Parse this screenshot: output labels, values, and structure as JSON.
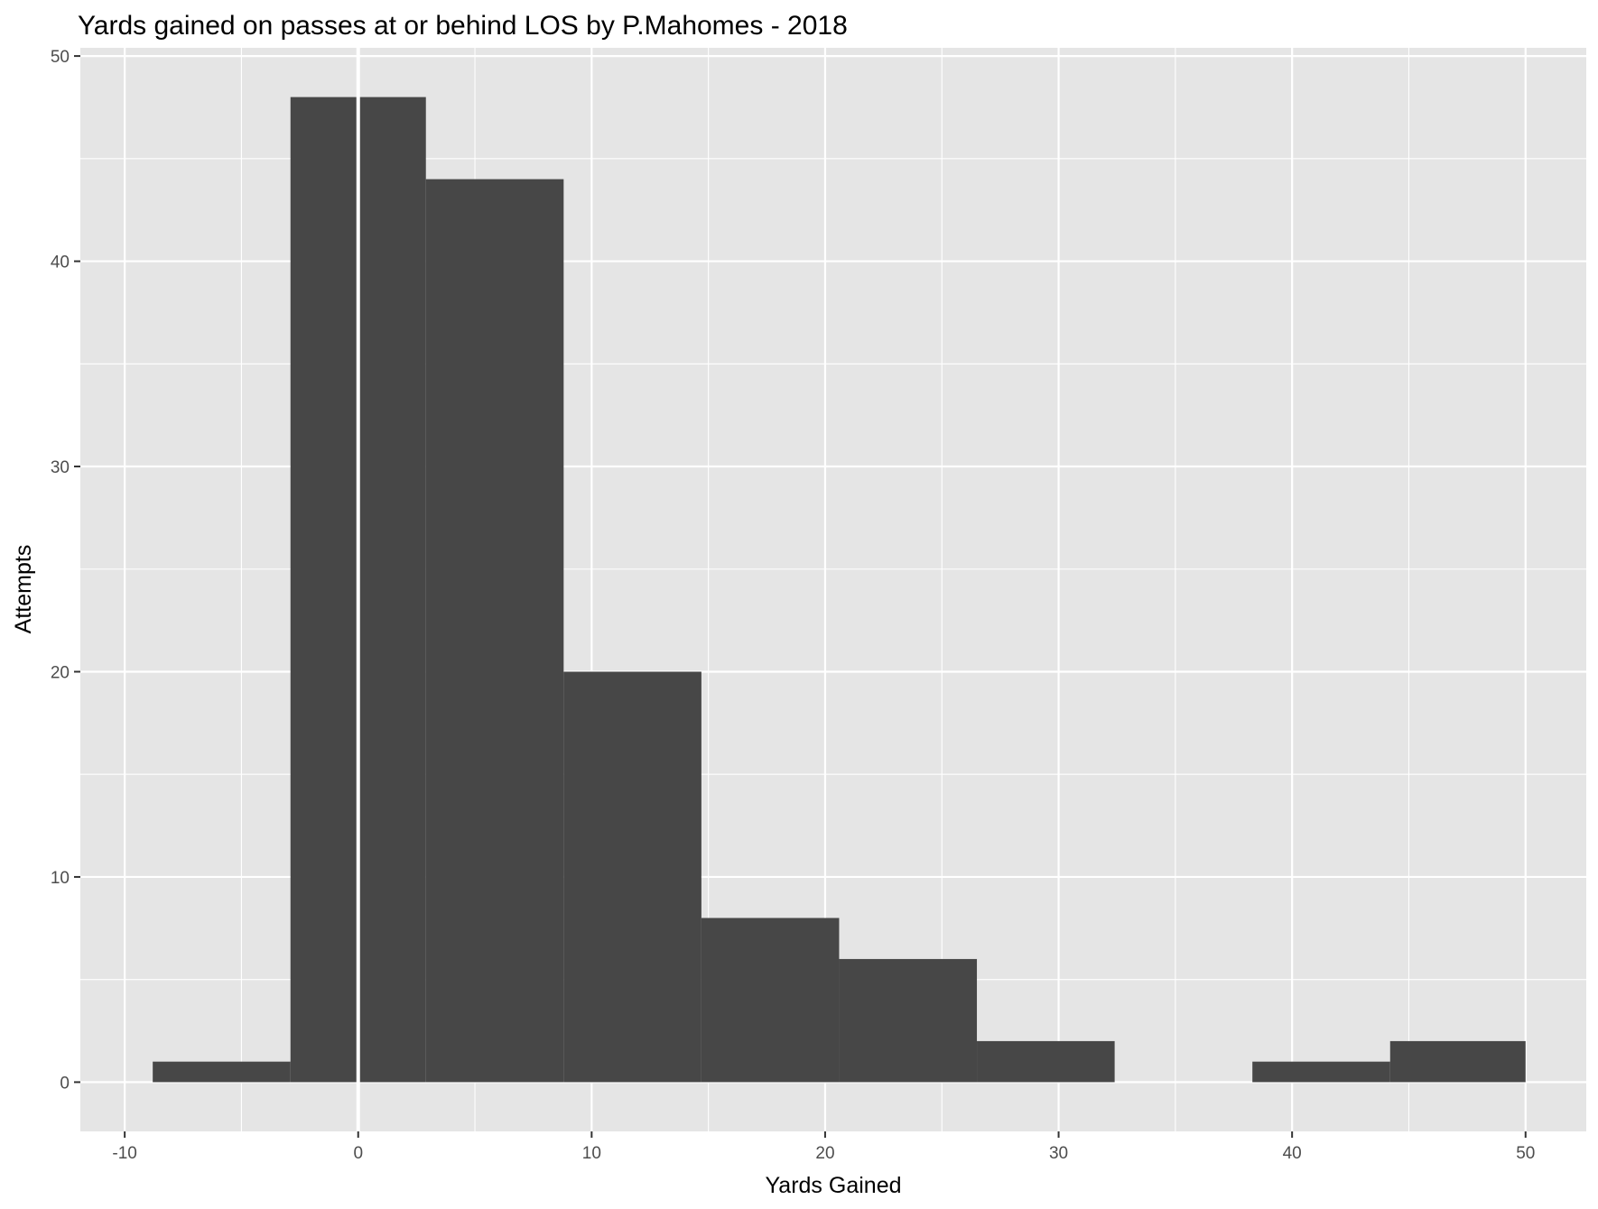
{
  "chart_data": {
    "type": "bar",
    "title": "Yards gained on passes at or behind LOS by P.Mahomes - 2018",
    "xlabel": "Yards Gained",
    "ylabel": "Attempts",
    "xlim": [
      -11.9,
      52.6
    ],
    "ylim": [
      -2.4,
      50.4
    ],
    "x_ticks": [
      -10,
      0,
      10,
      20,
      30,
      40,
      50
    ],
    "y_ticks": [
      0,
      10,
      20,
      30,
      40,
      50
    ],
    "grid": true,
    "legend": "none",
    "bin_width": 5.8878,
    "bins": [
      {
        "x0": -8.8,
        "x1": -2.9,
        "count": 1
      },
      {
        "x0": -2.9,
        "x1": 2.9,
        "count": 48
      },
      {
        "x0": 2.9,
        "x1": 8.8,
        "count": 44
      },
      {
        "x0": 8.8,
        "x1": 14.7,
        "count": 20
      },
      {
        "x0": 14.7,
        "x1": 20.6,
        "count": 8
      },
      {
        "x0": 20.6,
        "x1": 26.5,
        "count": 6
      },
      {
        "x0": 26.5,
        "x1": 32.4,
        "count": 2
      },
      {
        "x0": 32.4,
        "x1": 38.3,
        "count": 0
      },
      {
        "x0": 38.3,
        "x1": 44.2,
        "count": 1
      },
      {
        "x0": 44.2,
        "x1": 50.0,
        "count": 2
      }
    ],
    "reference_line_x": 0,
    "colors": {
      "panel": "#e5e5e5",
      "bar": "#474747",
      "grid": "#ffffff",
      "reference_line": "#ffffff"
    }
  }
}
